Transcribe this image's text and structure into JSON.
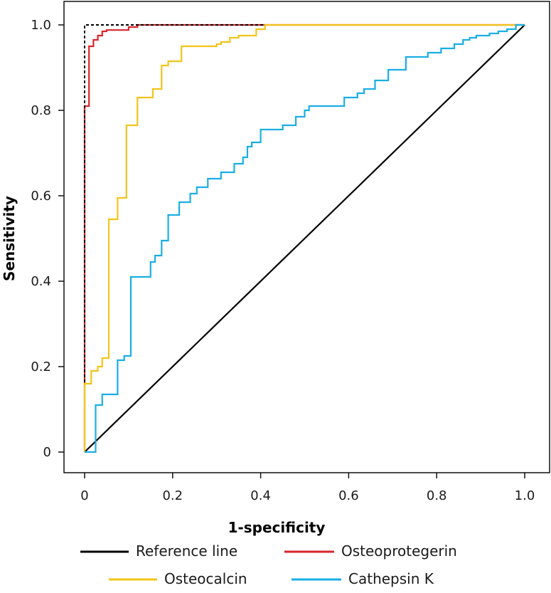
{
  "chart_data": {
    "type": "line",
    "title": "",
    "xlabel": "1-specificity",
    "ylabel": "Sensitivity",
    "xlim": [
      0,
      1
    ],
    "ylim": [
      0,
      1
    ],
    "x_ticks": [
      {
        "value": 0,
        "label": "0"
      },
      {
        "value": 0.2,
        "label": "0.2"
      },
      {
        "value": 0.4,
        "label": "0.4"
      },
      {
        "value": 0.6,
        "label": "0.6"
      },
      {
        "value": 0.8,
        "label": "0.8"
      },
      {
        "value": 1.0,
        "label": "1.0"
      }
    ],
    "y_ticks": [
      {
        "value": 0,
        "label": "0"
      },
      {
        "value": 0.2,
        "label": "0.2"
      },
      {
        "value": 0.4,
        "label": "0.4"
      },
      {
        "value": 0.6,
        "label": "0.6"
      },
      {
        "value": 0.8,
        "label": "0.8"
      },
      {
        "value": 1.0,
        "label": "1.0"
      }
    ],
    "grid": false,
    "legend_position": "bottom",
    "series": [
      {
        "name": "Reference line",
        "key": "reference-line",
        "color": "#000000",
        "dash": false,
        "in_legend": true,
        "x": [
          0,
          1
        ],
        "y": [
          0,
          1
        ]
      },
      {
        "name": "Osteoprotegerin",
        "key": "osteoprotegerin",
        "color": "#d7262b",
        "dash": false,
        "in_legend": true,
        "x": [
          0,
          0,
          0.01,
          0.01,
          0.02,
          0.02,
          0.03,
          0.03,
          0.04,
          0.04,
          0.05,
          0.05,
          0.1,
          0.1,
          0.12,
          0.12,
          1.0
        ],
        "y": [
          0,
          0.81,
          0.81,
          0.95,
          0.95,
          0.965,
          0.965,
          0.975,
          0.975,
          0.985,
          0.985,
          0.988,
          0.988,
          0.995,
          0.995,
          1.0,
          1.0
        ]
      },
      {
        "name": "Reference (perfect)",
        "key": "perfect-classifier",
        "color": "#000000",
        "dash": true,
        "in_legend": false,
        "x": [
          0,
          0,
          1.0
        ],
        "y": [
          0,
          1.0,
          1.0
        ]
      },
      {
        "name": "Osteocalcin",
        "key": "osteocalcin",
        "color": "#f2c41a",
        "dash": false,
        "in_legend": true,
        "x": [
          0,
          0,
          0.015,
          0.015,
          0.03,
          0.03,
          0.04,
          0.04,
          0.055,
          0.055,
          0.075,
          0.075,
          0.095,
          0.095,
          0.12,
          0.12,
          0.155,
          0.155,
          0.175,
          0.175,
          0.19,
          0.19,
          0.22,
          0.22,
          0.3,
          0.3,
          0.31,
          0.31,
          0.33,
          0.33,
          0.35,
          0.35,
          0.39,
          0.39,
          0.41,
          0.41,
          1.0
        ],
        "y": [
          0,
          0.16,
          0.16,
          0.19,
          0.19,
          0.2,
          0.2,
          0.22,
          0.22,
          0.545,
          0.545,
          0.595,
          0.595,
          0.765,
          0.765,
          0.83,
          0.83,
          0.85,
          0.85,
          0.905,
          0.905,
          0.915,
          0.915,
          0.95,
          0.95,
          0.955,
          0.955,
          0.96,
          0.96,
          0.97,
          0.97,
          0.975,
          0.975,
          0.99,
          0.99,
          1.0,
          1.0
        ]
      },
      {
        "name": "Cathepsin K",
        "key": "cathepsin-k",
        "color": "#1aaee5",
        "dash": false,
        "in_legend": true,
        "x": [
          0,
          0.025,
          0.025,
          0.04,
          0.04,
          0.075,
          0.075,
          0.09,
          0.09,
          0.105,
          0.105,
          0.15,
          0.15,
          0.16,
          0.16,
          0.175,
          0.175,
          0.19,
          0.19,
          0.215,
          0.215,
          0.24,
          0.24,
          0.255,
          0.255,
          0.28,
          0.28,
          0.31,
          0.31,
          0.34,
          0.34,
          0.36,
          0.36,
          0.37,
          0.37,
          0.38,
          0.38,
          0.4,
          0.4,
          0.45,
          0.45,
          0.48,
          0.48,
          0.5,
          0.5,
          0.51,
          0.51,
          0.59,
          0.59,
          0.62,
          0.62,
          0.635,
          0.635,
          0.66,
          0.66,
          0.69,
          0.69,
          0.73,
          0.73,
          0.78,
          0.78,
          0.81,
          0.81,
          0.84,
          0.84,
          0.86,
          0.86,
          0.875,
          0.875,
          0.89,
          0.89,
          0.92,
          0.92,
          0.94,
          0.94,
          0.96,
          0.96,
          0.98,
          0.98,
          1.0
        ],
        "y": [
          0,
          0,
          0.11,
          0.11,
          0.135,
          0.135,
          0.215,
          0.215,
          0.225,
          0.225,
          0.41,
          0.41,
          0.445,
          0.445,
          0.46,
          0.46,
          0.495,
          0.495,
          0.555,
          0.555,
          0.585,
          0.585,
          0.605,
          0.605,
          0.62,
          0.62,
          0.64,
          0.64,
          0.655,
          0.655,
          0.675,
          0.675,
          0.69,
          0.69,
          0.715,
          0.715,
          0.725,
          0.725,
          0.755,
          0.755,
          0.765,
          0.765,
          0.785,
          0.785,
          0.8,
          0.8,
          0.81,
          0.81,
          0.83,
          0.83,
          0.84,
          0.84,
          0.85,
          0.85,
          0.87,
          0.87,
          0.895,
          0.895,
          0.925,
          0.925,
          0.935,
          0.935,
          0.945,
          0.945,
          0.955,
          0.955,
          0.965,
          0.965,
          0.97,
          0.97,
          0.975,
          0.975,
          0.98,
          0.98,
          0.985,
          0.985,
          0.99,
          0.99,
          1.0,
          1.0
        ]
      }
    ]
  }
}
